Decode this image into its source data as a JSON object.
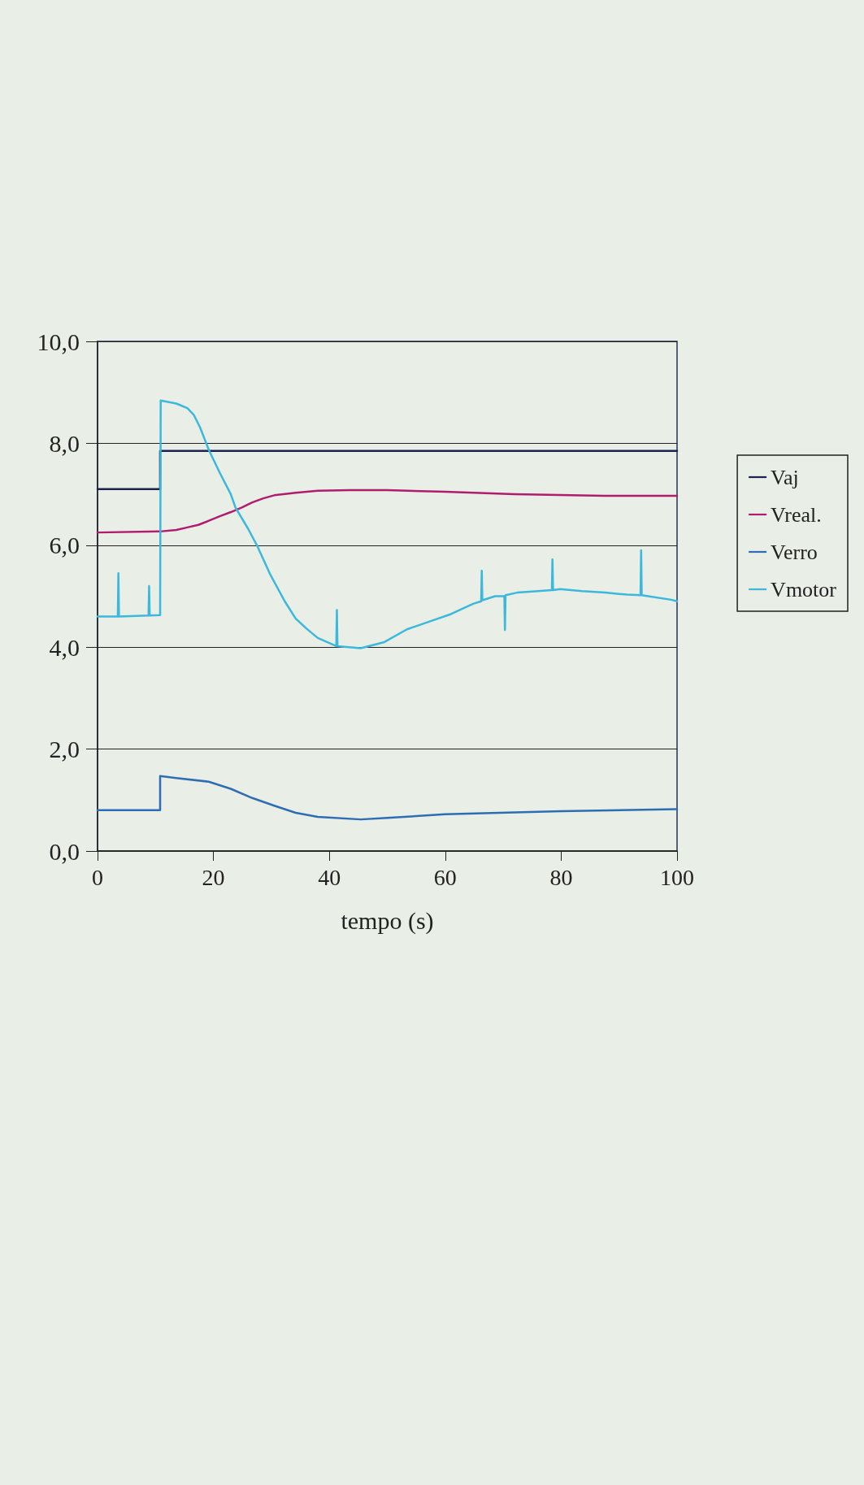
{
  "chart_data": {
    "type": "line",
    "xlabel": "tempo (s)",
    "xlim": [
      0,
      100
    ],
    "xticks": [
      0,
      20,
      40,
      60,
      80,
      100
    ],
    "ylim": [
      0,
      10
    ],
    "yticks": [
      {
        "value": 0,
        "label": "0,0"
      },
      {
        "value": 2,
        "label": "2,0"
      },
      {
        "value": 4,
        "label": "4,0"
      },
      {
        "value": 6,
        "label": "6,0"
      },
      {
        "value": 8,
        "label": "8,0"
      },
      {
        "value": 10,
        "label": "10,0"
      }
    ],
    "grid": "y",
    "legend": "right",
    "marker": "none",
    "line_style": "solid",
    "series": [
      {
        "name": "Vaj",
        "color": "#1b2350",
        "x": [
          0,
          10.8,
          10.8,
          100
        ],
        "values": [
          7.1,
          7.1,
          7.85,
          7.85
        ]
      },
      {
        "name": "Vreal.",
        "color": "#b01c6e",
        "x": [
          0,
          10.8,
          13.6,
          15.5,
          17.4,
          19.2,
          21.1,
          23,
          24.9,
          26.7,
          28.6,
          30.5,
          34.2,
          38,
          43.6,
          50,
          60,
          72,
          87.5,
          100
        ],
        "values": [
          6.25,
          6.27,
          6.3,
          6.35,
          6.4,
          6.48,
          6.57,
          6.65,
          6.74,
          6.84,
          6.92,
          6.98,
          7.03,
          7.07,
          7.08,
          7.08,
          7.05,
          7.0,
          6.97,
          6.97
        ]
      },
      {
        "name": "Verro",
        "color": "#2e6db4",
        "x": [
          0,
          10.8,
          10.8,
          13.6,
          19.2,
          23,
          26.7,
          30.5,
          34.2,
          38,
          45.4,
          50,
          60,
          80,
          100
        ],
        "values": [
          0.8,
          0.8,
          1.47,
          1.43,
          1.36,
          1.22,
          1.04,
          0.89,
          0.75,
          0.67,
          0.62,
          0.65,
          0.72,
          0.78,
          0.82
        ]
      },
      {
        "name": "Vmotor",
        "color": "#3bb8dc",
        "x": [
          0,
          3.5,
          3.6,
          3.7,
          8.8,
          8.9,
          9,
          10.8,
          10.9,
          13.6,
          15.5,
          16.6,
          17.7,
          19.2,
          21.1,
          23,
          23.8,
          26,
          27.5,
          29.7,
          32.3,
          34.2,
          36.1,
          38,
          41.2,
          41.3,
          41.4,
          45.4,
          49.5,
          53.4,
          57.2,
          61,
          64.8,
          66.2,
          66.3,
          66.4,
          68.6,
          70.2,
          70.3,
          70.4,
          72.4,
          76,
          78.4,
          78.5,
          78.6,
          79.8,
          83.6,
          87.6,
          91.4,
          93.7,
          93.8,
          93.9,
          95,
          99,
          100
        ],
        "values": [
          4.6,
          4.6,
          5.45,
          4.6,
          4.62,
          5.2,
          4.62,
          4.63,
          8.84,
          8.78,
          8.69,
          8.56,
          8.31,
          7.87,
          7.42,
          7.0,
          6.74,
          6.32,
          6.0,
          5.45,
          4.9,
          4.56,
          4.36,
          4.18,
          4.02,
          4.73,
          4.02,
          3.98,
          4.1,
          4.35,
          4.5,
          4.65,
          4.85,
          4.9,
          5.5,
          4.92,
          5.0,
          5.0,
          4.34,
          5.02,
          5.07,
          5.1,
          5.12,
          5.72,
          5.12,
          5.14,
          5.1,
          5.07,
          5.03,
          5.02,
          5.9,
          5.02,
          5.0,
          4.93,
          4.9
        ]
      }
    ]
  }
}
